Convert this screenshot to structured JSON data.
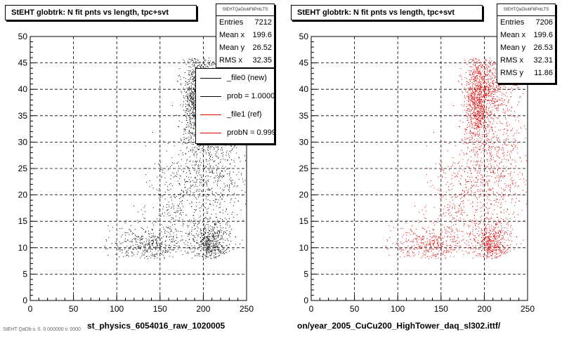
{
  "colors": {
    "new": "#000000",
    "ref": "#e00000",
    "grid": "#000000"
  },
  "footer_text": "StEHT QaDb v. 0. 0 000000 v. 0000",
  "chart_data": [
    {
      "type": "scatter",
      "title": "StEHT globtrk: N fit pnts vs length, tpc+svt",
      "xlabel": "st_physics_6054016_raw_1020005",
      "ylabel": "",
      "xlim": [
        0,
        250
      ],
      "ylim": [
        0,
        50
      ],
      "xticks": [
        0,
        50,
        100,
        150,
        200,
        250
      ],
      "yticks": [
        0,
        5,
        10,
        15,
        20,
        25,
        30,
        35,
        40,
        45,
        50
      ],
      "grid": true,
      "series": [
        {
          "name": "_file0 (new)",
          "color": "#000000"
        }
      ],
      "stats": {
        "header": "StEHTQaGlobFitPntLTS",
        "rows": [
          {
            "label": "Entries",
            "value": "7212"
          },
          {
            "label": "Mean x",
            "value": "199.6"
          },
          {
            "label": "Mean y",
            "value": "26.52"
          },
          {
            "label": "RMS x",
            "value": "32.35"
          }
        ]
      },
      "legend": {
        "placement": "top-right",
        "entries": [
          {
            "label": "_file0 (new)",
            "color": "#000000"
          },
          {
            "label": "prob = 1.000000",
            "color": "#000000"
          },
          {
            "label": "_file1 (ref)",
            "color": "#e00000"
          },
          {
            "label": "probN = 0.999191",
            "color": "#e00000"
          }
        ]
      }
    },
    {
      "type": "scatter",
      "title": "StEHT globtrk: N fit pnts vs length, tpc+svt",
      "xlabel": "on/year_2005_CuCu200_HighTower_daq_sl302.ittf/",
      "ylabel": "",
      "xlim": [
        0,
        250
      ],
      "ylim": [
        0,
        50
      ],
      "xticks": [
        0,
        50,
        100,
        150,
        200,
        250
      ],
      "yticks": [
        0,
        5,
        10,
        15,
        20,
        25,
        30,
        35,
        40,
        45,
        50
      ],
      "grid": true,
      "series": [
        {
          "name": "_file1 (ref)",
          "color": "#e00000"
        }
      ],
      "stats": {
        "header": "StEHTQaGlobFitPntLTS",
        "rows": [
          {
            "label": "Entries",
            "value": "7206"
          },
          {
            "label": "Mean x",
            "value": "199.6"
          },
          {
            "label": "Mean y",
            "value": "26.53"
          },
          {
            "label": "RMS x",
            "value": "32.31"
          },
          {
            "label": "RMS y",
            "value": "11.86"
          }
        ]
      }
    }
  ]
}
